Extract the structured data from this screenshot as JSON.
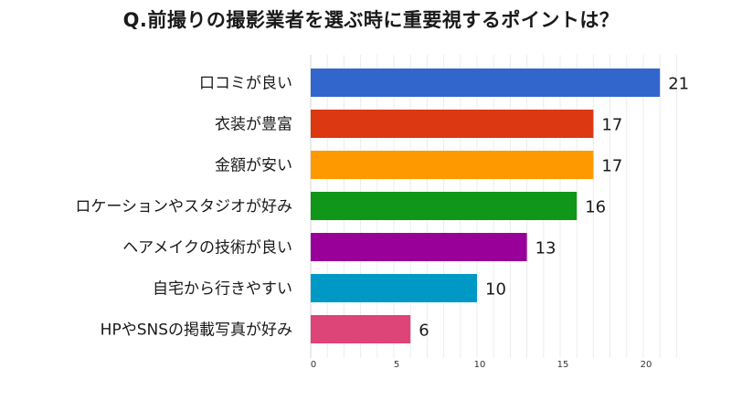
{
  "chart_data": {
    "type": "bar",
    "orientation": "horizontal",
    "title": "Q.前撮りの撮影業者を選ぶ時に重要視するポイントは？",
    "categories": [
      "口コミが良い",
      "衣装が豊富",
      "金額が安い",
      "ロケーションやスタジオが好み",
      "ヘアメイクの技術が良い",
      "自宅から行きやすい",
      "HPやSNSの掲載写真が好み"
    ],
    "values": [
      21,
      17,
      17,
      16,
      13,
      10,
      6
    ],
    "colors": [
      "#3366cc",
      "#dc3912",
      "#ff9900",
      "#109618",
      "#990099",
      "#0099c6",
      "#dd4477"
    ],
    "xlim": [
      0,
      21
    ],
    "xticks": [
      0,
      5,
      10,
      15,
      20
    ],
    "grid": true,
    "legend": "none"
  }
}
